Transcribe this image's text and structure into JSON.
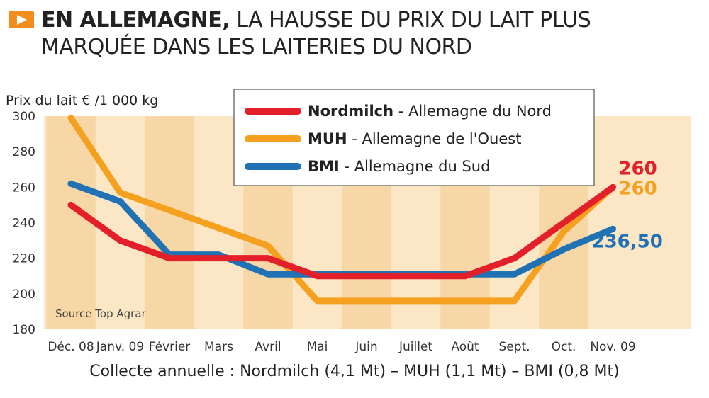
{
  "title": {
    "bold": "EN ALLEMAGNE,",
    "rest1": " LA HAUSSE DU PRIX DU LAIT PLUS",
    "line2": "MARQUÉE DANS LES LAITERIES DU NORD"
  },
  "footer": "Collecte annuelle : Nordmilch (4,1 Mt) – MUH (1,1 Mt) – BMI (0,8 Mt)",
  "colors": {
    "nordmilch": "#e3202a",
    "muh": "#f5a11f",
    "bmi": "#2171b5",
    "band_dark": "#f8d7a6",
    "band_light": "#fbe6c6",
    "accent": "#f28c1c"
  },
  "chart_data": {
    "type": "line",
    "title": "EN ALLEMAGNE, LA HAUSSE DU PRIX DU LAIT PLUS MARQUÉE DANS LES LAITERIES DU NORD",
    "ylabel": "Prix du lait € /1 000 kg",
    "xlabel": "",
    "ylim": [
      180,
      300
    ],
    "yticks": [
      "300",
      "280",
      "260",
      "240",
      "220",
      "200",
      "180"
    ],
    "categories": [
      "Déc. 08",
      "Janv. 09",
      "Février",
      "Mars",
      "Avril",
      "Mai",
      "Juin",
      "Juillet",
      "Août",
      "Sept.",
      "Oct.",
      "Nov. 09"
    ],
    "series": [
      {
        "key": "nordmilch",
        "name": "Nordmilch",
        "legend_suffix": " - Allemagne du Nord",
        "values": [
          250,
          230,
          220,
          220,
          220,
          210,
          210,
          210,
          210,
          220,
          240,
          260
        ],
        "end_label": "260"
      },
      {
        "key": "muh",
        "name": "MUH",
        "legend_suffix": " - Allemagne de l'Ouest",
        "values": [
          299,
          257,
          247,
          237,
          227,
          196,
          196,
          196,
          196,
          196,
          235,
          260
        ],
        "end_label": "260"
      },
      {
        "key": "bmi",
        "name": "BMI",
        "legend_suffix": " - Allemagne du Sud",
        "values": [
          262,
          252,
          222,
          222,
          211,
          211,
          211,
          211,
          211,
          211,
          225,
          236.5
        ],
        "end_label": "236,50"
      }
    ],
    "annotation": "Source Top Agrar"
  }
}
